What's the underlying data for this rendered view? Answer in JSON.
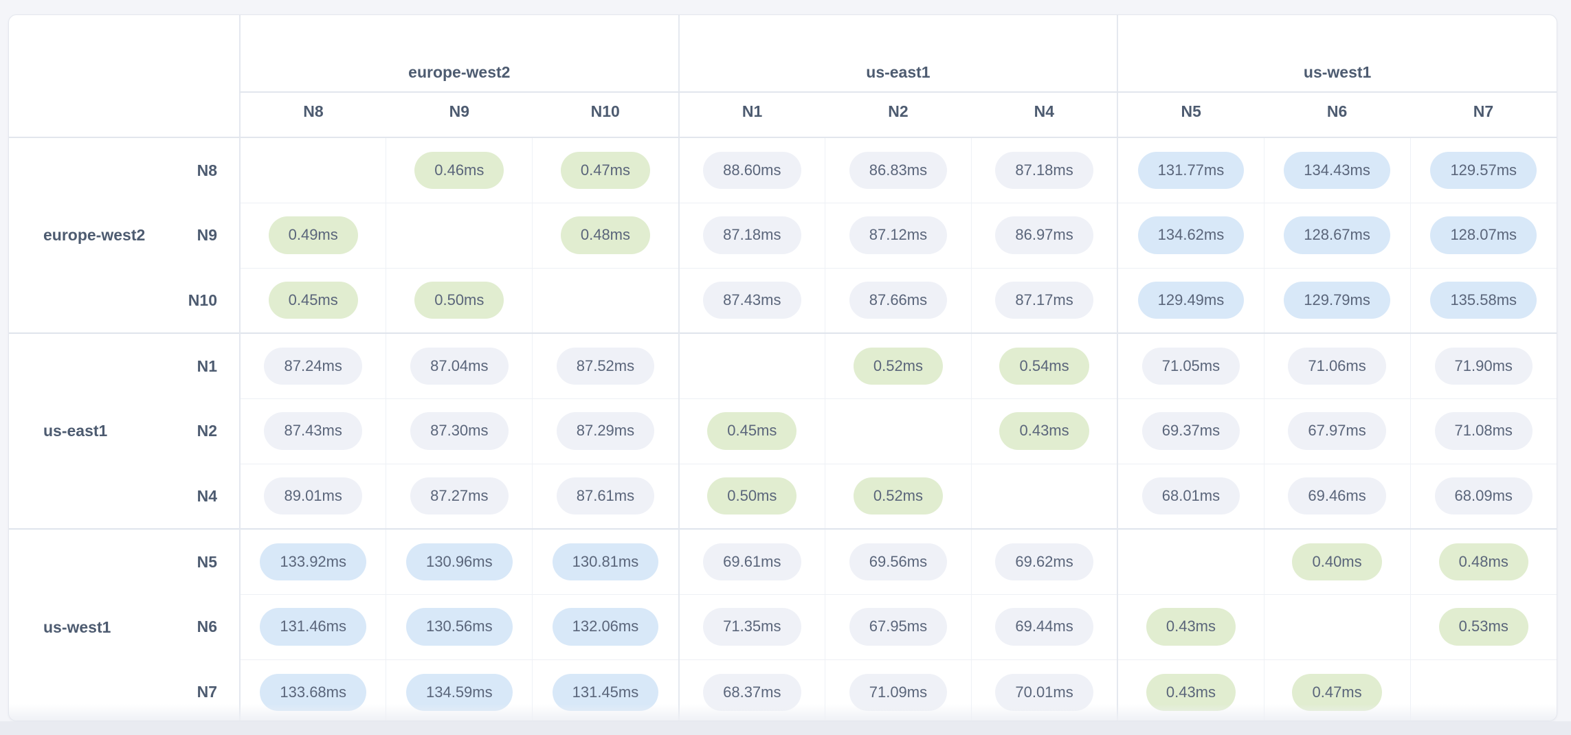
{
  "page": {
    "background_color": "#f4f5f9",
    "card_background": "#ffffff",
    "card_border_color": "#e4e7ee",
    "bottom_track_color": "#e9ebf1",
    "header_text_color": "#4d5b70",
    "pill_text_color": "#5a657a"
  },
  "chart_data": {
    "type": "heatmap",
    "title": "",
    "unit": "ms",
    "legend_position": "none",
    "tiers": {
      "fast": {
        "max_ms": 1,
        "color": "#e1edd0"
      },
      "medium": {
        "max_ms": 110,
        "color": "#eff1f7"
      },
      "slow": {
        "max_ms": null,
        "color": "#d8e8f8"
      }
    },
    "column_groups": [
      {
        "region": "europe-west2",
        "nodes": [
          "N8",
          "N9",
          "N10"
        ]
      },
      {
        "region": "us-east1",
        "nodes": [
          "N1",
          "N2",
          "N4"
        ]
      },
      {
        "region": "us-west1",
        "nodes": [
          "N5",
          "N6",
          "N7"
        ]
      }
    ],
    "row_groups": [
      {
        "region": "europe-west2",
        "rows": [
          {
            "node": "N8",
            "values_ms": [
              null,
              0.46,
              0.47,
              88.6,
              86.83,
              87.18,
              131.77,
              134.43,
              129.57
            ]
          },
          {
            "node": "N9",
            "values_ms": [
              0.49,
              null,
              0.48,
              87.18,
              87.12,
              86.97,
              134.62,
              128.67,
              128.07
            ]
          },
          {
            "node": "N10",
            "values_ms": [
              0.45,
              0.5,
              null,
              87.43,
              87.66,
              87.17,
              129.49,
              129.79,
              135.58
            ]
          }
        ]
      },
      {
        "region": "us-east1",
        "rows": [
          {
            "node": "N1",
            "values_ms": [
              87.24,
              87.04,
              87.52,
              null,
              0.52,
              0.54,
              71.05,
              71.06,
              71.9
            ]
          },
          {
            "node": "N2",
            "values_ms": [
              87.43,
              87.3,
              87.29,
              0.45,
              null,
              0.43,
              69.37,
              67.97,
              71.08
            ]
          },
          {
            "node": "N4",
            "values_ms": [
              89.01,
              87.27,
              87.61,
              0.5,
              0.52,
              null,
              68.01,
              69.46,
              68.09
            ]
          }
        ]
      },
      {
        "region": "us-west1",
        "rows": [
          {
            "node": "N5",
            "values_ms": [
              133.92,
              130.96,
              130.81,
              69.61,
              69.56,
              69.62,
              null,
              0.4,
              0.48
            ]
          },
          {
            "node": "N6",
            "values_ms": [
              131.46,
              130.56,
              132.06,
              71.35,
              67.95,
              69.44,
              0.43,
              null,
              0.53
            ]
          },
          {
            "node": "N7",
            "values_ms": [
              133.68,
              134.59,
              131.45,
              68.37,
              71.09,
              70.01,
              0.43,
              0.47,
              null
            ]
          }
        ]
      }
    ]
  }
}
